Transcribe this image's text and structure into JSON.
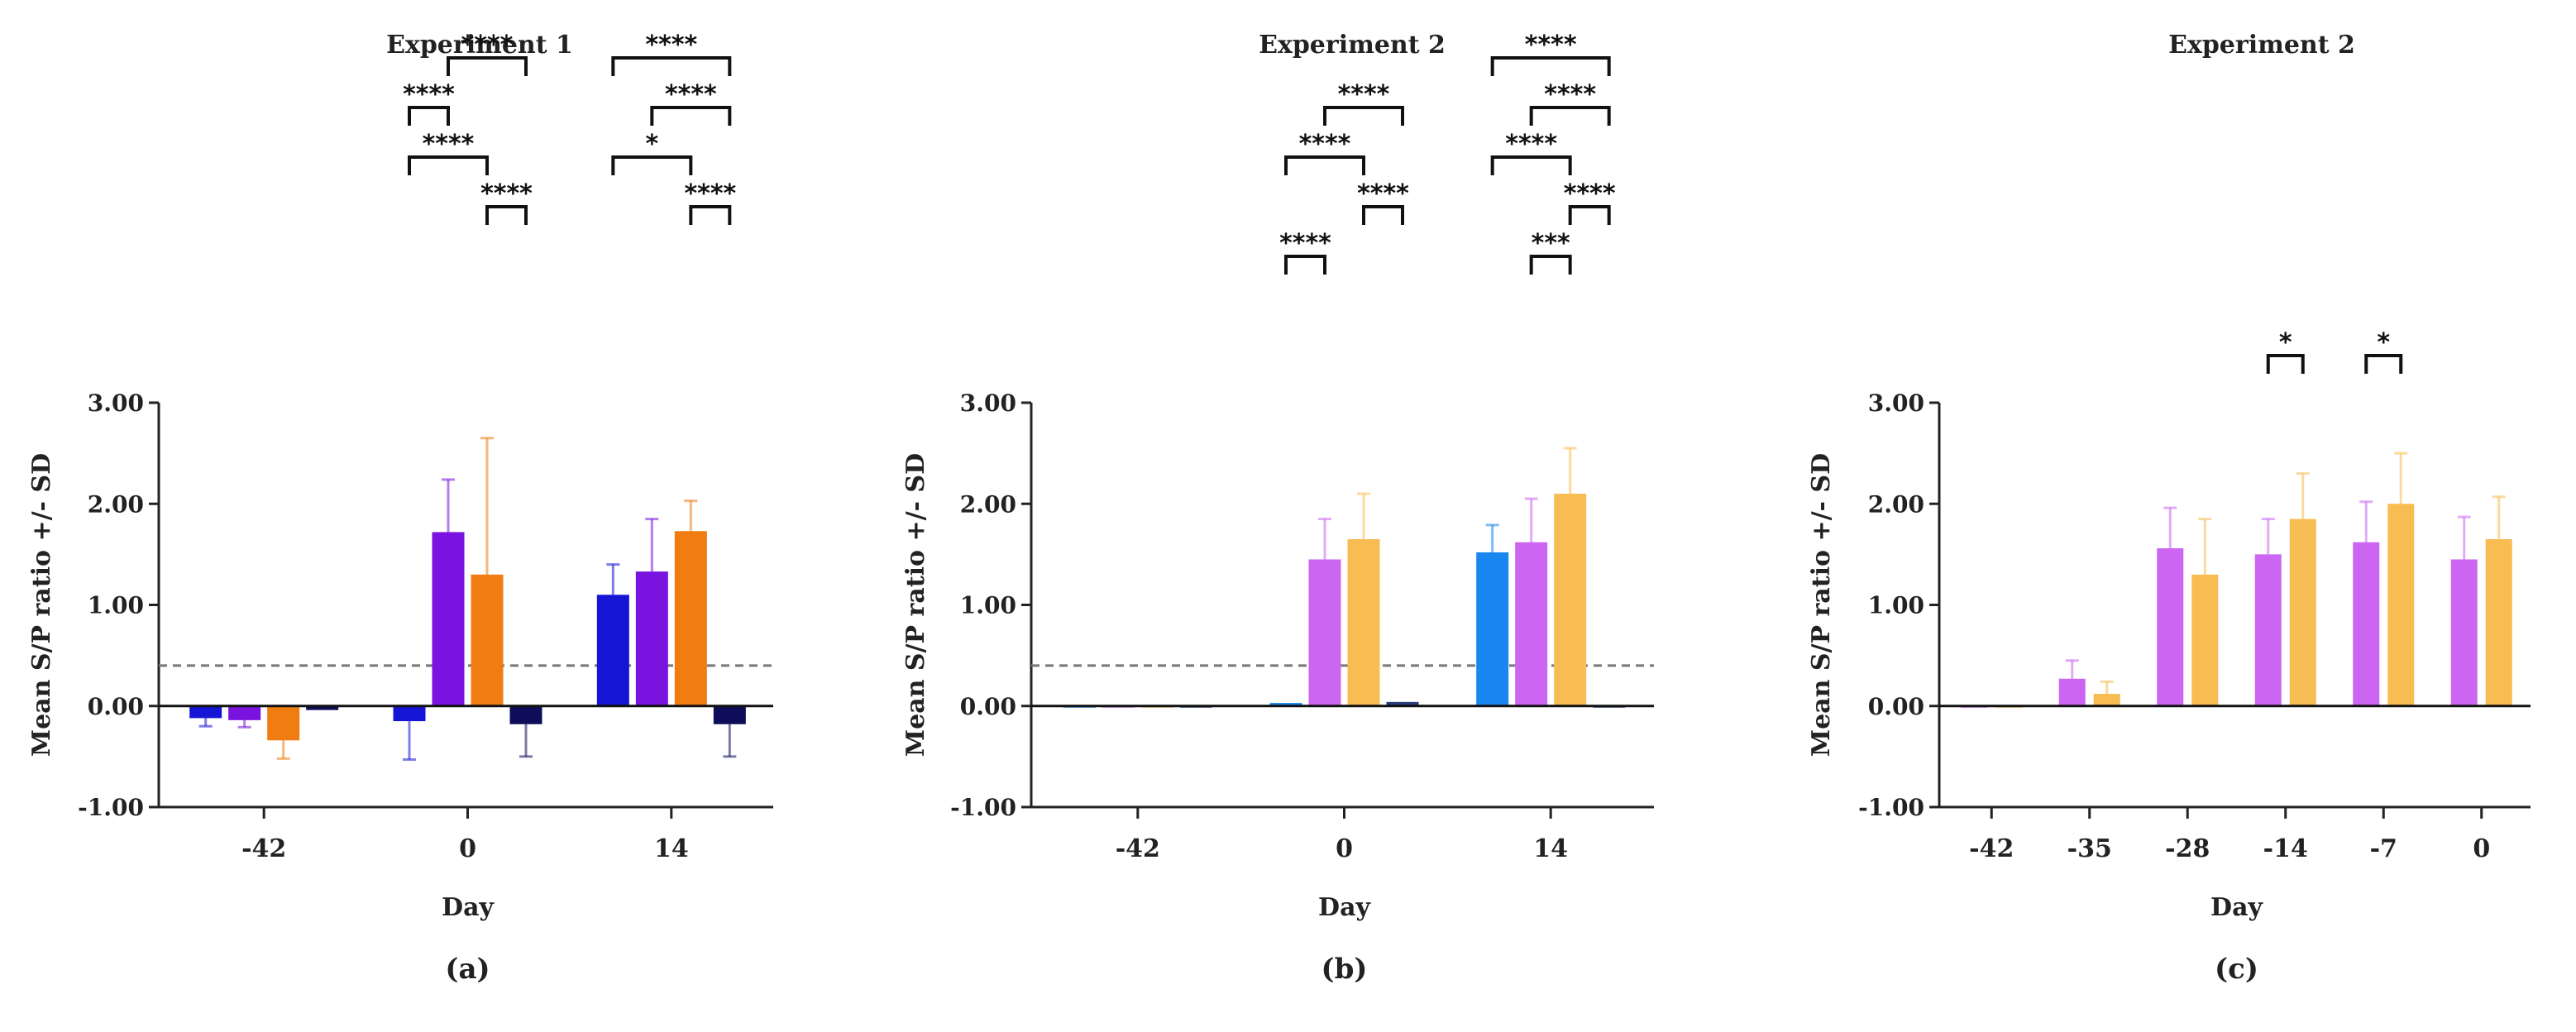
{
  "chart_data": [
    {
      "type": "bar",
      "title": "Experiment 1",
      "panel_label": "(a)",
      "xlabel": "Day",
      "ylabel": "Mean S/P ratio +/- SD",
      "ylim": [
        -1.0,
        3.0
      ],
      "yticks": [
        "-1.00",
        "0.00",
        "1.00",
        "2.00",
        "3.00"
      ],
      "cutoff": 0.4,
      "categories": [
        "-42",
        "0",
        "14"
      ],
      "series": [
        {
          "color": "#1515d6",
          "values": [
            -0.12,
            -0.15,
            1.1
          ],
          "sd": [
            0.08,
            0.38,
            0.3
          ]
        },
        {
          "color": "#7a12e0",
          "values": [
            -0.14,
            1.72,
            1.33
          ],
          "sd": [
            0.07,
            0.52,
            0.52
          ]
        },
        {
          "color": "#f07c12",
          "values": [
            -0.34,
            1.3,
            1.73
          ],
          "sd": [
            0.18,
            1.35,
            0.3
          ]
        },
        {
          "color": "#0d0d5a",
          "values": [
            -0.04,
            -0.18,
            -0.18
          ],
          "sd": [
            0.0,
            0.32,
            0.32
          ]
        }
      ],
      "significance": [
        {
          "label": "****",
          "cat": 1,
          "from": 0,
          "to": 1,
          "level": 5
        },
        {
          "label": "****",
          "cat": 1,
          "from": 1,
          "to": 3,
          "level": 6
        },
        {
          "label": "****",
          "cat": 1,
          "from": 0,
          "to": 2,
          "level": 4
        },
        {
          "label": "****",
          "cat": 1,
          "from": 2,
          "to": 3,
          "level": 3
        },
        {
          "label": "****",
          "cat": 2,
          "from": 0,
          "to": 3,
          "level": 6
        },
        {
          "label": "****",
          "cat": 2,
          "from": 1,
          "to": 3,
          "level": 5
        },
        {
          "label": "*",
          "cat": 2,
          "from": 0,
          "to": 2,
          "level": 4
        },
        {
          "label": "****",
          "cat": 2,
          "from": 2,
          "to": 3,
          "level": 3
        }
      ]
    },
    {
      "type": "bar",
      "title": "Experiment 2",
      "panel_label": "(b)",
      "xlabel": "Day",
      "ylabel": "Mean S/P ratio +/- SD",
      "ylim": [
        -1.0,
        3.0
      ],
      "yticks": [
        "-1.00",
        "0.00",
        "1.00",
        "2.00",
        "3.00"
      ],
      "cutoff": 0.4,
      "categories": [
        "-42",
        "0",
        "14"
      ],
      "series": [
        {
          "color": "#1a86f0",
          "values": [
            0.0,
            0.03,
            1.52
          ],
          "sd": [
            0.0,
            0.0,
            0.27
          ]
        },
        {
          "color": "#cc66f2",
          "values": [
            0.0,
            1.45,
            1.62
          ],
          "sd": [
            0.0,
            0.4,
            0.43
          ]
        },
        {
          "color": "#f8bd52",
          "values": [
            0.0,
            1.65,
            2.1
          ],
          "sd": [
            0.0,
            0.45,
            0.45
          ]
        },
        {
          "color": "#2a3c7a",
          "values": [
            0.0,
            0.04,
            0.0
          ],
          "sd": [
            0.0,
            0.0,
            0.0
          ]
        }
      ],
      "significance": [
        {
          "label": "****",
          "cat": 1,
          "from": 0,
          "to": 1,
          "level": 2
        },
        {
          "label": "****",
          "cat": 1,
          "from": 0,
          "to": 2,
          "level": 4
        },
        {
          "label": "****",
          "cat": 1,
          "from": 1,
          "to": 3,
          "level": 5
        },
        {
          "label": "****",
          "cat": 1,
          "from": 2,
          "to": 3,
          "level": 3
        },
        {
          "label": "****",
          "cat": 2,
          "from": 0,
          "to": 3,
          "level": 6
        },
        {
          "label": "****",
          "cat": 2,
          "from": 1,
          "to": 3,
          "level": 5
        },
        {
          "label": "****",
          "cat": 2,
          "from": 0,
          "to": 2,
          "level": 4
        },
        {
          "label": "****",
          "cat": 2,
          "from": 2,
          "to": 3,
          "level": 3
        },
        {
          "label": "***",
          "cat": 2,
          "from": 1,
          "to": 2,
          "level": 2
        }
      ]
    },
    {
      "type": "bar",
      "title": "Experiment 2",
      "panel_label": "(c)",
      "xlabel": "Day",
      "ylabel": "Mean S/P ratio +/- SD",
      "ylim": [
        -1.0,
        3.0
      ],
      "yticks": [
        "-1.00",
        "0.00",
        "1.00",
        "2.00",
        "3.00"
      ],
      "categories": [
        "-42",
        "-35",
        "-28",
        "-14",
        "-7",
        "0"
      ],
      "series": [
        {
          "color": "#cc66f2",
          "values": [
            -0.01,
            0.27,
            1.56,
            1.5,
            1.62,
            1.45
          ],
          "sd": [
            0.0,
            0.18,
            0.4,
            0.35,
            0.4,
            0.42
          ]
        },
        {
          "color": "#f8bd52",
          "values": [
            -0.01,
            0.12,
            1.3,
            1.85,
            2.0,
            1.65
          ],
          "sd": [
            0.0,
            0.12,
            0.55,
            0.45,
            0.5,
            0.42
          ]
        }
      ],
      "significance": [
        {
          "label": "*",
          "cat": 3,
          "from": 0,
          "to": 1,
          "level": 0
        },
        {
          "label": "*",
          "cat": 4,
          "from": 0,
          "to": 1,
          "level": 0
        }
      ]
    }
  ]
}
